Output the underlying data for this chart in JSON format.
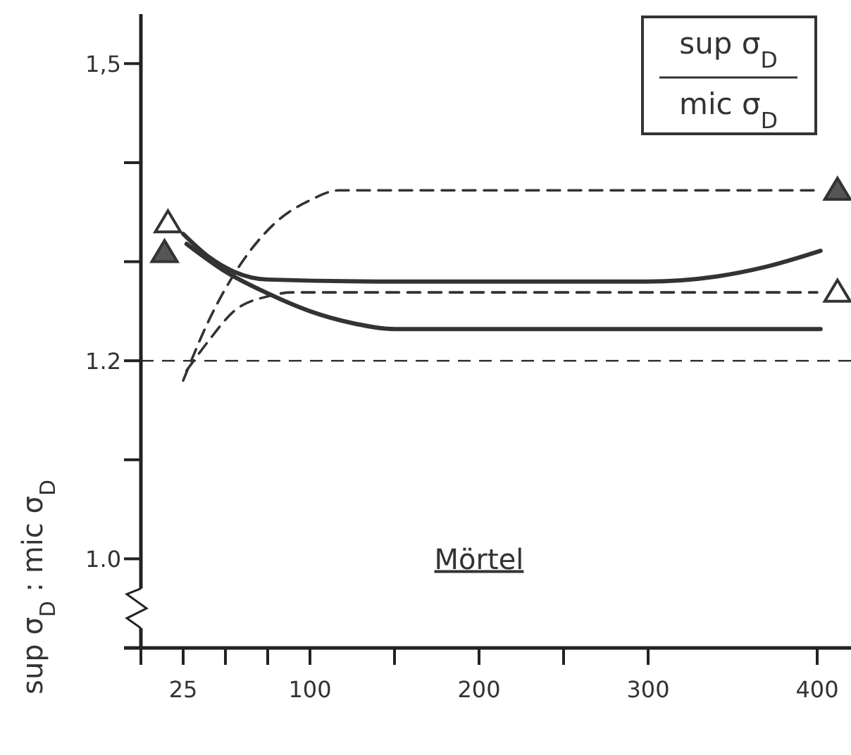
{
  "chart_data": {
    "type": "line",
    "ylabel": "sup σ$_{D}$ : mic σ$_{D}$",
    "xlim": [
      0,
      420
    ],
    "xticks": [
      {
        "value": 0,
        "label": null
      },
      25,
      {
        "value": 50,
        "label": null
      },
      {
        "value": 75,
        "label": null
      },
      100,
      {
        "value": 150,
        "label": null
      },
      200,
      {
        "value": 250,
        "label": null
      },
      300,
      400
    ],
    "ylim": [
      0.91,
      1.55
    ],
    "yticks": [
      {
        "value": 1.0,
        "label": "1.0"
      },
      {
        "value": 1.1,
        "label": null
      },
      {
        "value": 1.2,
        "label": "1.2"
      },
      {
        "value": 1.3,
        "label": null
      },
      {
        "value": 1.4,
        "label": null
      },
      {
        "value": 1.5,
        "label": "1,5"
      }
    ],
    "ref_lines": [
      {
        "axis": "y",
        "value": 1.2,
        "line_style": "dashed",
        "color": "#333333"
      }
    ],
    "annotations": [
      "Mörtel",
      "sup σ$_{D}$",
      "mic σ$_{D}$"
    ],
    "series": [
      {
        "color": "#333333",
        "line_style": "solid",
        "x": [
          25,
          40,
          55,
          75,
          150,
          300,
          340,
          370,
          402
        ],
        "values": [
          1.328,
          1.305,
          1.29,
          1.282,
          1.28,
          1.28,
          1.285,
          1.295,
          1.311
        ]
      },
      {
        "color": "#333333",
        "line_style": "solid",
        "x": [
          27,
          50,
          75,
          100,
          125,
          150,
          402
        ],
        "values": [
          1.318,
          1.29,
          1.268,
          1.25,
          1.238,
          1.232,
          1.232
        ]
      },
      {
        "color": "#333333",
        "line_style": "dashed",
        "x": [
          25,
          40,
          60,
          80,
          100,
          117,
          400
        ],
        "values": [
          1.18,
          1.24,
          1.3,
          1.34,
          1.362,
          1.372,
          1.372
        ]
      },
      {
        "color": "#333333",
        "line_style": "dashed",
        "x": [
          27,
          40,
          55,
          75,
          90,
          400
        ],
        "values": [
          1.19,
          1.22,
          1.25,
          1.265,
          1.269,
          1.269
        ]
      },
      {
        "type": "scatter",
        "marker": "triangle",
        "color": "#555555",
        "x": [
          14,
          412
        ],
        "values": [
          1.31,
          1.373
        ]
      },
      {
        "type": "scatter",
        "marker": "triangle",
        "color": "#ffffff",
        "x": [
          16,
          412
        ],
        "values": [
          1.34,
          1.27
        ]
      }
    ]
  }
}
